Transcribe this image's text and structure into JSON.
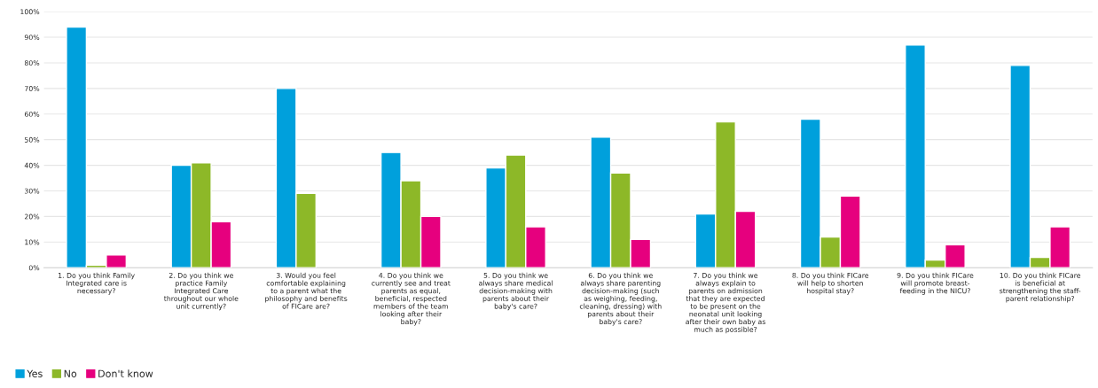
{
  "chart_data": {
    "type": "bar",
    "categories": [
      "1. Do you think Family\nIntegrated care is\nnecessary?",
      "2. Do you think we\npractice Family\nIntegrated Care\nthroughout our whole\nunit currently?",
      "3. Would you feel\ncomfortable explaining\nto a parent what the\nphilosophy and benefits\nof FICare are?",
      "4. Do you think we\ncurrently see and treat\nparents as equal,\nbeneficial, respected\nmembers of the team\nlooking after their\nbaby?",
      "5. Do you think we\nalways share medical\ndecision-making with\nparents about their\nbaby's care?",
      "6. Do you think we\nalways share parenting\ndecision-making (such\nas weighing, feeding,\ncleaning, dressing) with\nparents about their\nbaby's care?",
      "7. Do you think we\nalways explain to\nparents on admission\nthat they are expected\nto be present on the\nneonatal unit looking\nafter their own baby as\nmuch as possible?",
      "8. Do you think FICare\nwill help to shorten\nhospital stay?",
      "9. Do you think FICare\nwill promote breast-\nfeeding in the NICU?",
      "10. Do you think FICare\nis beneficial at\nstrengthening the staff-\nparent relationship?"
    ],
    "series": [
      {
        "name": "Yes",
        "color": "#00a0dc",
        "values": [
          94,
          40,
          70,
          45,
          39,
          51,
          21,
          58,
          87,
          79
        ]
      },
      {
        "name": "No",
        "color": "#8db828",
        "values": [
          1,
          41,
          29,
          34,
          44,
          37,
          57,
          12,
          3,
          4
        ]
      },
      {
        "name": "Don't know",
        "color": "#e6007e",
        "values": [
          5,
          18,
          null,
          20,
          16,
          11,
          22,
          28,
          9,
          16
        ]
      }
    ],
    "ylim": [
      0,
      100
    ],
    "yticks": [
      {
        "value": 0,
        "label": "0%"
      },
      {
        "value": 10,
        "label": "10%"
      },
      {
        "value": 20,
        "label": "20%"
      },
      {
        "value": 30,
        "label": "30%"
      },
      {
        "value": 40,
        "label": "40%"
      },
      {
        "value": 50,
        "label": "50%"
      },
      {
        "value": 60,
        "label": "60%"
      },
      {
        "value": 70,
        "label": "70%"
      },
      {
        "value": 80,
        "label": "80%"
      },
      {
        "value": 90,
        "label": "90%"
      },
      {
        "value": 100,
        "label": "100%"
      }
    ],
    "grid": "y",
    "legend": "bottom left"
  }
}
